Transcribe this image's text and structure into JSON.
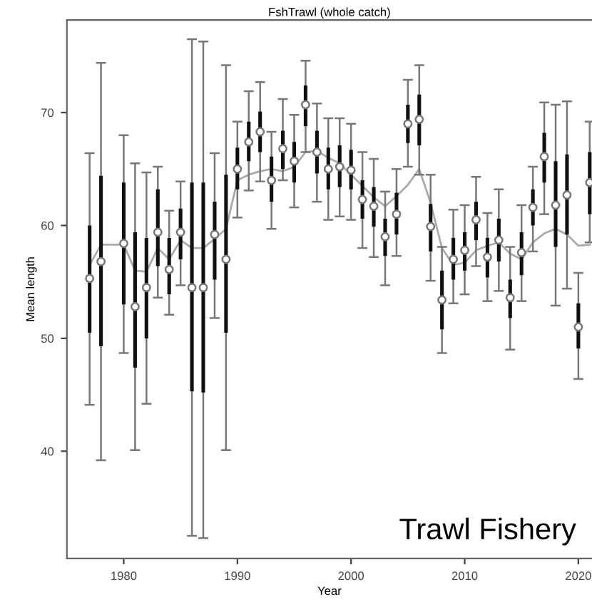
{
  "chart_data": {
    "type": "scatter",
    "title": "FshTrawl (whole catch)",
    "xlabel": "Year",
    "ylabel": "Mean length",
    "xlim": [
      1975,
      2021.2
    ],
    "ylim": [
      30.5,
      78.2
    ],
    "xticks": [
      1980,
      1990,
      2000,
      2010,
      2020
    ],
    "yticks": [
      40,
      50,
      60,
      70
    ],
    "grid": false,
    "legend": false,
    "annotations": [
      "Trawl Fishery"
    ],
    "series": [
      {
        "type": "line",
        "color": "#aaaaaa",
        "marker": "none",
        "line_style": "solid",
        "x": [
          1977,
          1978,
          1980,
          1981,
          1982,
          1983,
          1984,
          1985,
          1986,
          1987,
          1988,
          1989,
          1990,
          1991,
          1992,
          1993,
          1994,
          1995,
          1996,
          1997,
          1998,
          1999,
          2000,
          2001,
          2002,
          2003,
          2004,
          2005,
          2006,
          2007,
          2008,
          2009,
          2010,
          2011,
          2012,
          2013,
          2014,
          2015,
          2016,
          2017,
          2018,
          2019,
          2020,
          2021
        ],
        "values": [
          56.5,
          58.3,
          58.3,
          56.0,
          55.9,
          58.0,
          57.0,
          58.7,
          58.0,
          58.0,
          58.8,
          59.7,
          64.0,
          64.5,
          64.8,
          65.0,
          64.8,
          65.2,
          66.5,
          66.6,
          66.0,
          65.5,
          64.5,
          63.5,
          62.5,
          61.7,
          62.6,
          63.6,
          65.0,
          62.0,
          58.0,
          56.5,
          56.7,
          57.8,
          58.2,
          58.5,
          57.5,
          57.0,
          58.5,
          59.3,
          59.7,
          59.2,
          58.2,
          58.3
        ]
      },
      {
        "type": "bar",
        "color": "#111111",
        "x": [
          1977,
          1978,
          1980,
          1981,
          1982,
          1983,
          1984,
          1985,
          1986,
          1987,
          1988,
          1989,
          1990,
          1991,
          1992,
          1993,
          1994,
          1995,
          1996,
          1997,
          1998,
          1999,
          2000,
          2001,
          2002,
          2003,
          2004,
          2005,
          2006,
          2007,
          2008,
          2009,
          2010,
          2011,
          2012,
          2013,
          2014,
          2015,
          2016,
          2017,
          2018,
          2019,
          2020,
          2021
        ],
        "base": [
          50.5,
          49.3,
          53.0,
          47.4,
          50.0,
          56.4,
          53.9,
          57.0,
          45.3,
          45.2,
          55.2,
          50.5,
          63.2,
          65.7,
          66.5,
          62.1,
          65.0,
          63.8,
          68.8,
          64.6,
          63.2,
          63.4,
          63.2,
          60.6,
          59.9,
          57.3,
          59.2,
          67.3,
          67.1,
          57.7,
          50.8,
          55.2,
          56.0,
          58.7,
          55.4,
          56.8,
          51.8,
          55.6,
          60.0,
          63.8,
          58.1,
          59.2,
          49.1,
          61.0
        ],
        "values": [
          9.5,
          15.1,
          10.8,
          12.0,
          8.9,
          6.8,
          5.0,
          4.5,
          18.5,
          18.6,
          6.9,
          14.0,
          3.7,
          3.5,
          3.6,
          4.0,
          3.4,
          3.6,
          3.6,
          3.8,
          3.7,
          3.7,
          3.5,
          3.4,
          3.5,
          3.3,
          3.7,
          3.4,
          4.5,
          4.2,
          5.2,
          3.7,
          3.4,
          3.4,
          3.5,
          3.8,
          3.4,
          3.8,
          3.2,
          4.4,
          7.6,
          7.1,
          4.0,
          5.5
        ]
      },
      {
        "color": "#777777",
        "marker": "circle",
        "x": [
          1977,
          1978,
          1980,
          1981,
          1982,
          1983,
          1984,
          1985,
          1986,
          1987,
          1988,
          1989,
          1990,
          1991,
          1992,
          1993,
          1994,
          1995,
          1996,
          1997,
          1998,
          1999,
          2000,
          2001,
          2002,
          2003,
          2004,
          2005,
          2006,
          2007,
          2008,
          2009,
          2010,
          2011,
          2012,
          2013,
          2014,
          2015,
          2016,
          2017,
          2018,
          2019,
          2020,
          2021
        ],
        "values": [
          55.3,
          56.8,
          58.4,
          52.8,
          54.5,
          59.4,
          56.1,
          59.4,
          54.5,
          54.5,
          59.2,
          57.0,
          65.0,
          67.4,
          68.3,
          64.0,
          66.8,
          65.7,
          70.7,
          66.5,
          65.0,
          65.2,
          64.9,
          62.3,
          61.7,
          59.0,
          61.0,
          69.0,
          69.4,
          59.9,
          53.4,
          57.0,
          57.8,
          60.5,
          57.2,
          58.7,
          53.6,
          57.6,
          61.6,
          66.1,
          61.8,
          62.7,
          51.0,
          63.8
        ],
        "errors": [
          [
            44.1,
            66.4
          ],
          [
            39.2,
            74.4
          ],
          [
            48.7,
            68.0
          ],
          [
            40.1,
            65.5
          ],
          [
            44.2,
            64.7
          ],
          [
            53.6,
            65.2
          ],
          [
            52.1,
            61.3
          ],
          [
            54.7,
            63.9
          ],
          [
            32.5,
            76.5
          ],
          [
            32.3,
            76.3
          ],
          [
            51.8,
            66.4
          ],
          [
            40.1,
            74.2
          ],
          [
            60.7,
            69.2
          ],
          [
            63.1,
            71.9
          ],
          [
            63.9,
            72.7
          ],
          [
            59.7,
            68.3
          ],
          [
            64.0,
            71.2
          ],
          [
            61.6,
            69.8
          ],
          [
            66.5,
            74.6
          ],
          [
            62.1,
            70.8
          ],
          [
            60.5,
            69.5
          ],
          [
            60.8,
            69.5
          ],
          [
            60.5,
            69.0
          ],
          [
            58.0,
            66.5
          ],
          [
            57.2,
            65.9
          ],
          [
            54.7,
            63.0
          ],
          [
            57.3,
            65.0
          ],
          [
            65.2,
            72.9
          ],
          [
            64.5,
            74.2
          ],
          [
            55.1,
            64.5
          ],
          [
            48.7,
            58.1
          ],
          [
            53.1,
            61.4
          ],
          [
            53.9,
            61.8
          ],
          [
            56.4,
            64.3
          ],
          [
            53.3,
            61.1
          ],
          [
            54.2,
            63.2
          ],
          [
            49.0,
            58.1
          ],
          [
            53.3,
            61.8
          ],
          [
            57.7,
            65.2
          ],
          [
            61.0,
            70.9
          ],
          [
            52.9,
            70.7
          ],
          [
            54.4,
            71.0
          ],
          [
            46.4,
            55.8
          ],
          [
            58.5,
            69.2
          ]
        ]
      }
    ]
  }
}
